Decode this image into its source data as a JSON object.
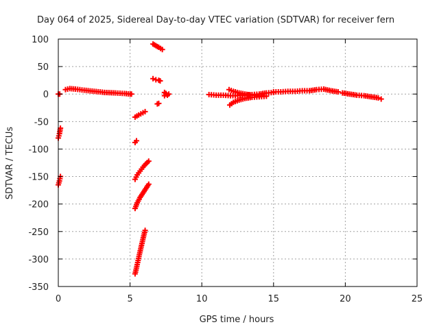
{
  "chart_data": {
    "type": "scatter",
    "title": "Day 064 of 2025, Sidereal Day-to-day VTEC variation (SDTVAR) for receiver fern",
    "xlabel": "GPS time / hours",
    "ylabel": "SDTVAR / TECUs",
    "xlim": [
      0,
      25
    ],
    "ylim": [
      -350,
      100
    ],
    "xticks": [
      0,
      5,
      10,
      15,
      20,
      25
    ],
    "yticks": [
      100,
      50,
      0,
      -50,
      -100,
      -150,
      -200,
      -250,
      -300,
      -350
    ],
    "grid": true,
    "marker": "plus",
    "color": "#ff0000",
    "segments": [
      {
        "x": [
          0.0,
          0.1
        ],
        "y": [
          0,
          0
        ]
      },
      {
        "x": [
          0.0,
          0.08,
          0.15
        ],
        "y": [
          -80,
          -72,
          -62
        ]
      },
      {
        "x": [
          0.0,
          0.08,
          0.15
        ],
        "y": [
          -165,
          -158,
          -150
        ]
      },
      {
        "x": [
          0.5,
          0.8,
          1.2,
          1.8,
          2.5,
          3.2,
          4.0,
          4.6,
          5.0,
          5.1
        ],
        "y": [
          8,
          10,
          9,
          7,
          5,
          3,
          2,
          1,
          0,
          0
        ]
      },
      {
        "x": [
          5.35,
          5.6,
          5.9,
          6.05
        ],
        "y": [
          -42,
          -38,
          -34,
          -32
        ]
      },
      {
        "x": [
          5.35,
          5.45
        ],
        "y": [
          -88,
          -85
        ]
      },
      {
        "x": [
          5.35,
          5.5,
          5.7,
          5.9,
          6.1,
          6.3
        ],
        "y": [
          -155,
          -147,
          -140,
          -133,
          -127,
          -122
        ]
      },
      {
        "x": [
          5.35,
          5.5,
          5.7,
          5.9,
          6.1,
          6.3
        ],
        "y": [
          -208,
          -198,
          -188,
          -180,
          -172,
          -164
        ]
      },
      {
        "x": [
          5.35,
          5.5,
          5.65,
          5.8,
          5.95,
          6.05
        ],
        "y": [
          -327,
          -310,
          -292,
          -275,
          -258,
          -248
        ]
      },
      {
        "x": [
          6.6,
          6.8,
          7.0,
          7.1
        ],
        "y": [
          28,
          26,
          25,
          24
        ]
      },
      {
        "x": [
          6.6,
          6.8,
          7.0,
          7.25
        ],
        "y": [
          91,
          88,
          85,
          81
        ]
      },
      {
        "x": [
          6.9,
          7.0
        ],
        "y": [
          -18,
          -17
        ]
      },
      {
        "x": [
          7.4,
          7.5,
          7.6,
          7.7,
          7.5,
          7.4
        ],
        "y": [
          3,
          0,
          -2,
          0,
          1,
          -3
        ]
      },
      {
        "x": [
          10.5,
          11.0,
          11.5,
          12.0,
          12.5,
          13.0,
          13.5,
          14.0,
          14.5,
          15.0
        ],
        "y": [
          -1,
          -2,
          -2,
          -3,
          -3,
          -2,
          -1,
          0,
          2,
          3
        ]
      },
      {
        "x": [
          11.9,
          12.2,
          12.6,
          13.0,
          13.5,
          14.0
        ],
        "y": [
          8,
          5,
          2,
          0,
          -2,
          -3
        ]
      },
      {
        "x": [
          11.95,
          12.2,
          12.6,
          13.0,
          13.5,
          14.0,
          14.5
        ],
        "y": [
          -20,
          -15,
          -11,
          -8,
          -6,
          -5,
          -4
        ]
      },
      {
        "x": [
          15.0,
          15.5,
          16.0,
          16.5,
          17.0,
          17.5,
          18.0,
          18.5,
          19.0,
          19.5
        ],
        "y": [
          4,
          4,
          5,
          5,
          6,
          6,
          8,
          9,
          6,
          4
        ]
      },
      {
        "x": [
          19.8,
          20.3,
          20.8,
          21.3,
          21.8,
          22.3,
          22.5
        ],
        "y": [
          2,
          0,
          -2,
          -3,
          -5,
          -7,
          -9
        ]
      }
    ]
  }
}
